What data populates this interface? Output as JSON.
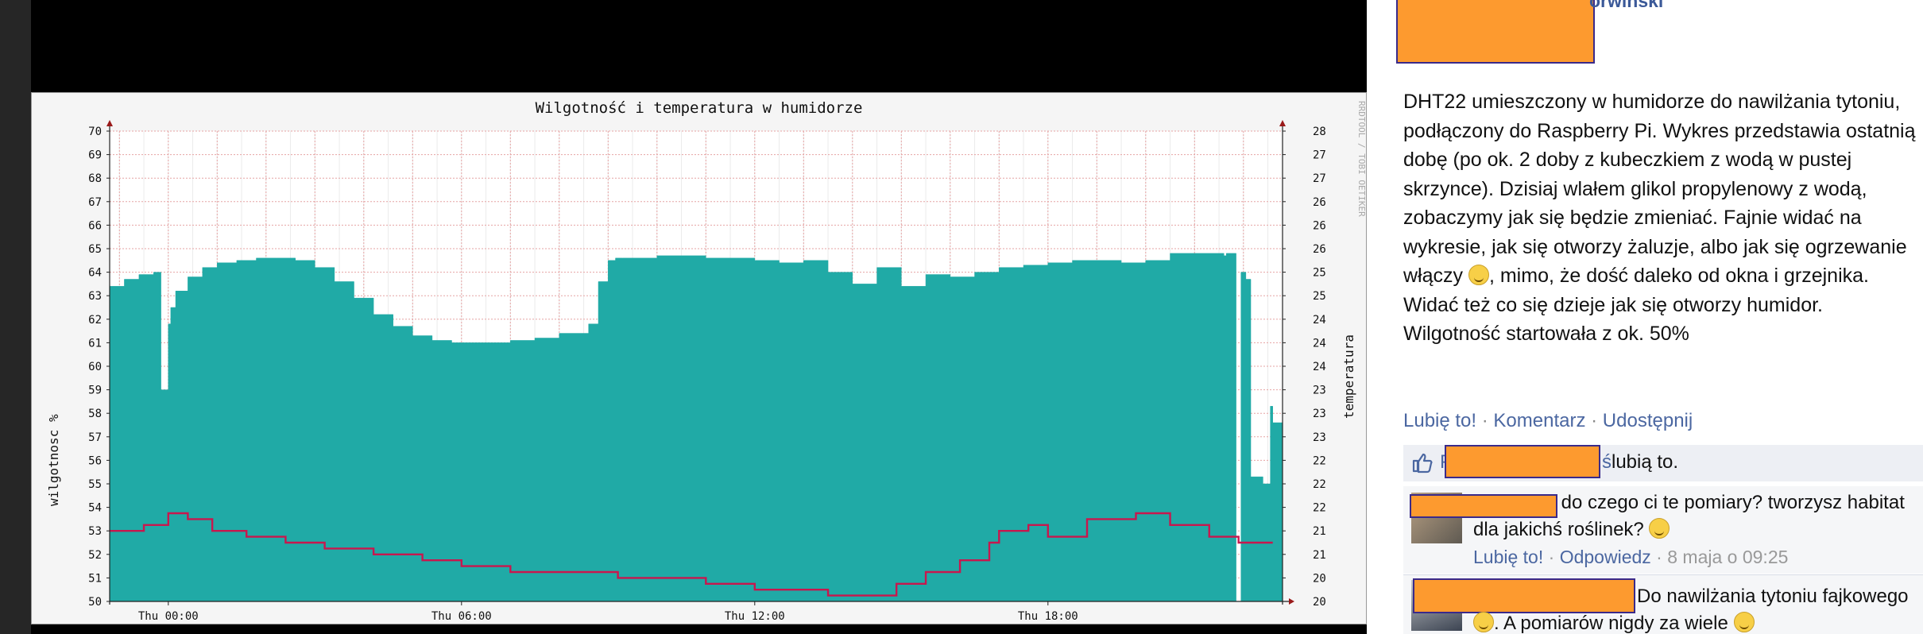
{
  "chart_data": {
    "type": "area",
    "title": "Wilgotność i temperatura w humidorze",
    "ylabel": "wilgotnosc %",
    "y2label": "temperatura",
    "watermark": "RRDTOOL / TOBI OETIKER",
    "ylim": [
      50,
      70
    ],
    "y_ticks": [
      "50",
      "51",
      "52",
      "53",
      "54",
      "55",
      "56",
      "57",
      "58",
      "59",
      "60",
      "61",
      "62",
      "63",
      "64",
      "65",
      "66",
      "67",
      "68",
      "69",
      "70"
    ],
    "y2_ticks": [
      "20",
      "20",
      "21",
      "21",
      "22",
      "22",
      "22",
      "23",
      "23",
      "23",
      "24",
      "24",
      "24",
      "25",
      "25",
      "26",
      "26",
      "26",
      "27",
      "27",
      "28"
    ],
    "x_ticks": [
      "Thu 00:00",
      "Thu 06:00",
      "Thu 12:00",
      "Thu 18:00"
    ],
    "x_tick_hours": [
      0,
      6,
      12,
      18
    ],
    "x_range_hours": [
      -1.2,
      22.8
    ],
    "colors": {
      "humidity": "#20aaa6",
      "temperature": "#c8174e",
      "grid_major": "#e6a3a3",
      "grid_minor": "#ececec",
      "arrow": "#9a1a1a"
    },
    "series": [
      {
        "name": "wilgotnosc %",
        "x": [
          -1.2,
          -0.9,
          -0.6,
          -0.3,
          -0.15,
          0.0,
          0.05,
          0.15,
          0.4,
          0.7,
          1.0,
          1.4,
          1.8,
          2.2,
          2.6,
          3.0,
          3.4,
          3.8,
          4.2,
          4.6,
          5.0,
          5.4,
          5.8,
          6.2,
          6.6,
          7.0,
          7.5,
          8.0,
          8.6,
          8.8,
          9.0,
          9.15,
          9.3,
          9.5,
          10.0,
          10.5,
          11.0,
          11.5,
          12.0,
          12.5,
          13.0,
          13.5,
          14.0,
          14.5,
          15.0,
          15.5,
          16.0,
          16.5,
          17.0,
          17.5,
          18.0,
          18.5,
          19.0,
          19.5,
          20.0,
          20.5,
          21.0,
          21.5,
          21.6,
          21.65,
          21.75,
          21.85,
          21.95,
          22.05,
          22.15,
          22.4,
          22.55,
          22.6,
          22.8
        ],
        "values": [
          63.4,
          63.7,
          63.9,
          64.0,
          59.0,
          61.8,
          62.5,
          63.2,
          63.8,
          64.2,
          64.4,
          64.5,
          64.6,
          64.6,
          64.5,
          64.2,
          63.6,
          62.9,
          62.2,
          61.7,
          61.3,
          61.1,
          61.0,
          61.0,
          61.0,
          61.1,
          61.2,
          61.4,
          61.8,
          63.6,
          64.5,
          64.6,
          64.6,
          64.6,
          64.7,
          64.7,
          64.6,
          64.6,
          64.5,
          64.4,
          64.5,
          64.0,
          63.5,
          64.2,
          63.4,
          63.9,
          63.8,
          64.0,
          64.2,
          64.3,
          64.4,
          64.5,
          64.5,
          64.4,
          64.5,
          64.8,
          64.8,
          64.8,
          64.7,
          64.8,
          64.8,
          50.0,
          64.0,
          63.7,
          55.3,
          55.0,
          58.3,
          57.6,
          50.0
        ]
      },
      {
        "name": "temperatura",
        "x": [
          -1.2,
          -0.5,
          0.0,
          0.4,
          0.9,
          1.6,
          2.4,
          3.2,
          4.2,
          5.2,
          6.0,
          7.0,
          8.4,
          9.2,
          10.0,
          11.0,
          12.0,
          13.5,
          14.5,
          14.9,
          15.5,
          16.2,
          16.8,
          17.0,
          17.6,
          18.0,
          18.8,
          19.8,
          20.5,
          21.3,
          21.9,
          22.6
        ],
        "values": [
          21.2,
          21.3,
          21.5,
          21.4,
          21.2,
          21.1,
          21.0,
          20.9,
          20.8,
          20.7,
          20.6,
          20.5,
          20.5,
          20.4,
          20.4,
          20.3,
          20.2,
          20.1,
          20.1,
          20.3,
          20.5,
          20.7,
          21.0,
          21.2,
          21.3,
          21.1,
          21.4,
          21.5,
          21.3,
          21.1,
          21.0,
          21.0
        ]
      }
    ]
  },
  "post": {
    "author_suffix": "orwiński",
    "text_parts": [
      "DHT22 umieszczony w humidorze do nawilżania tytoniu, podłączony do Raspberry Pi. Wykres przedstawia ostatnią dobę (po ok. 2 doby z kubeczkiem z wodą w pustej skrzynce). Dzisiaj wlałem glikol propylenowy z wodą, zobaczymy jak się będzie zmieniać. Fajnie widać na wykresie, jak się otworzy żaluzje, albo jak się ogrzewanie włączy ",
      ", mimo, że dość daleko od okna i grzejnika. Widać też co się dzieje jak się otworzy humidor. Wilgotność startowała z ok. 50%"
    ],
    "actions": {
      "like": "Lubię to!",
      "comment": "Komentarz",
      "share": "Udostępnij",
      "separator": " · "
    },
    "likes": {
      "initial": "P",
      "suffix": "ś",
      "text": "lubią to."
    },
    "comments": [
      {
        "text_after_name": " do czego ci te pomiary? tworzysz habitat dla jakichś roślinek? ",
        "like": "Lubię to!",
        "reply": "Odpowiedz",
        "date": "8 maja o 09:25"
      },
      {
        "text_after_name": "Do nawilżania tytoniu fajkowego ",
        "text_after_emoji": ". A pomiarów nigdy za wiele "
      }
    ]
  }
}
